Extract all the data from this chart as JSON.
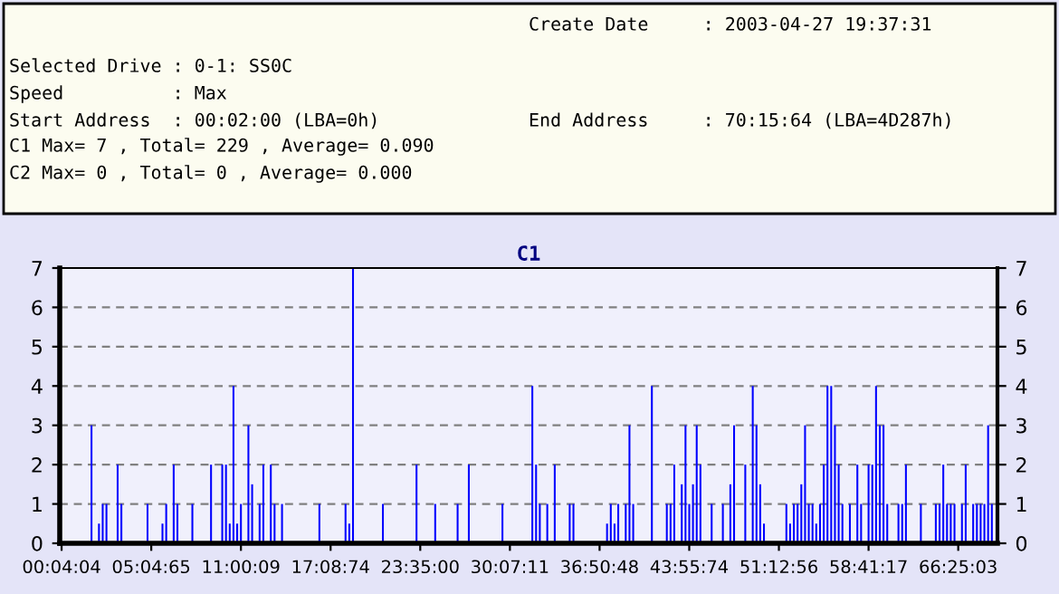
{
  "chart_data": {
    "type": "bar",
    "title": "C1",
    "annotations": [
      "Create Date     : 2003-04-27 19:37:31",
      "Selected Drive : 0-1: SS0C",
      "Speed          : Max",
      "Start Address  : 00:02:00 (LBA=0h)",
      "End Address     : 70:15:64 (LBA=4D287h)",
      "C1 Max= 7 , Total= 229 , Average= 0.090",
      "C2 Max= 0 , Total= 0 , Average= 0.000"
    ],
    "categories": [
      "00:04:04",
      null,
      null,
      null,
      null,
      null,
      null,
      null,
      null,
      null,
      null,
      null,
      null,
      null,
      null,
      null,
      null,
      null,
      null,
      null,
      null,
      null,
      null,
      null,
      "05:04:65",
      null,
      null,
      null,
      null,
      null,
      null,
      null,
      null,
      null,
      null,
      null,
      null,
      null,
      null,
      null,
      null,
      null,
      null,
      null,
      null,
      null,
      null,
      null,
      "11:00:09",
      null,
      null,
      null,
      null,
      null,
      null,
      null,
      null,
      null,
      null,
      null,
      null,
      null,
      null,
      null,
      null,
      null,
      null,
      null,
      null,
      null,
      null,
      null,
      "17:08:74",
      null,
      null,
      null,
      null,
      null,
      null,
      null,
      null,
      null,
      null,
      null,
      null,
      null,
      null,
      null,
      null,
      null,
      null,
      null,
      null,
      null,
      null,
      null,
      "23:35:00",
      null,
      null,
      null,
      null,
      null,
      null,
      null,
      null,
      null,
      null,
      null,
      null,
      null,
      null,
      null,
      null,
      null,
      null,
      null,
      null,
      null,
      null,
      null,
      "30:07:11",
      null,
      null,
      null,
      null,
      null,
      null,
      null,
      null,
      null,
      null,
      null,
      null,
      null,
      null,
      null,
      null,
      null,
      null,
      null,
      null,
      null,
      null,
      null,
      "36:50:48",
      null,
      null,
      null,
      null,
      null,
      null,
      null,
      null,
      null,
      null,
      null,
      null,
      null,
      null,
      null,
      null,
      null,
      null,
      null,
      null,
      null,
      null,
      null,
      "43:55:74",
      null,
      null,
      null,
      null,
      null,
      null,
      null,
      null,
      null,
      null,
      null,
      null,
      null,
      null,
      null,
      null,
      null,
      null,
      null,
      null,
      null,
      null,
      null,
      "51:12:56",
      null,
      null,
      null,
      null,
      null,
      null,
      null,
      null,
      null,
      null,
      null,
      null,
      null,
      null,
      null,
      null,
      null,
      null,
      null,
      null,
      null,
      null,
      null,
      "58:41:17",
      null,
      null,
      null,
      null,
      null,
      null,
      null,
      null,
      null,
      null,
      null,
      null,
      null,
      null,
      null,
      null,
      null,
      null,
      null,
      null,
      null,
      null,
      null,
      "66:25:03",
      null,
      null,
      null,
      null,
      null,
      null,
      null,
      null,
      null
    ],
    "series": [
      {
        "color": "#0000ff",
        "values": [
          null,
          null,
          null,
          null,
          null,
          null,
          null,
          null,
          3,
          null,
          0.5,
          1,
          1,
          null,
          null,
          2,
          1,
          null,
          null,
          null,
          null,
          null,
          null,
          1,
          null,
          null,
          null,
          0.5,
          1,
          null,
          2,
          1,
          null,
          null,
          null,
          1,
          null,
          null,
          null,
          null,
          2,
          null,
          null,
          2,
          2,
          0.5,
          4,
          0.5,
          1,
          null,
          3,
          1.5,
          null,
          1,
          2,
          null,
          2,
          1,
          null,
          1,
          null,
          null,
          null,
          null,
          null,
          null,
          null,
          null,
          null,
          1,
          null,
          null,
          null,
          null,
          null,
          null,
          1,
          0.5,
          7,
          null,
          null,
          null,
          null,
          null,
          null,
          null,
          1,
          null,
          null,
          null,
          null,
          null,
          null,
          null,
          null,
          2,
          null,
          null,
          null,
          null,
          1,
          null,
          null,
          null,
          null,
          null,
          1,
          null,
          null,
          2,
          null,
          null,
          null,
          null,
          null,
          null,
          null,
          null,
          1,
          null,
          null,
          null,
          null,
          null,
          null,
          null,
          4,
          2,
          1,
          null,
          1,
          null,
          2,
          null,
          null,
          null,
          1,
          1,
          null,
          null,
          null,
          null,
          null,
          null,
          null,
          null,
          0.5,
          1,
          0.5,
          1,
          null,
          1,
          3,
          1,
          null,
          null,
          null,
          null,
          4,
          null,
          null,
          null,
          1,
          1,
          2,
          null,
          1.5,
          3,
          1,
          1.5,
          3,
          2,
          null,
          null,
          1,
          null,
          null,
          1,
          null,
          1.5,
          3,
          null,
          null,
          2,
          null,
          4,
          3,
          1.5,
          0.5,
          null,
          null,
          null,
          null,
          null,
          1,
          0.5,
          1,
          1,
          1.5,
          3,
          1,
          1,
          0.5,
          1,
          2,
          4,
          4,
          3,
          2,
          1,
          null,
          1,
          null,
          2,
          1,
          null,
          2,
          2,
          4,
          3,
          3,
          1,
          null,
          null,
          1,
          1,
          2,
          null,
          null,
          null,
          1,
          null,
          null,
          null,
          1,
          1,
          2,
          1,
          1,
          1,
          null,
          1,
          2,
          null,
          1,
          1,
          1,
          1,
          3,
          1
        ]
      }
    ],
    "ylim": [
      0,
      7
    ],
    "yticks": [
      0,
      1,
      2,
      3,
      4,
      5,
      6,
      7
    ],
    "y2lim": [
      0,
      7
    ],
    "y2ticks": [
      0,
      1,
      2,
      3,
      4,
      5,
      6,
      7
    ],
    "grid": "y"
  }
}
